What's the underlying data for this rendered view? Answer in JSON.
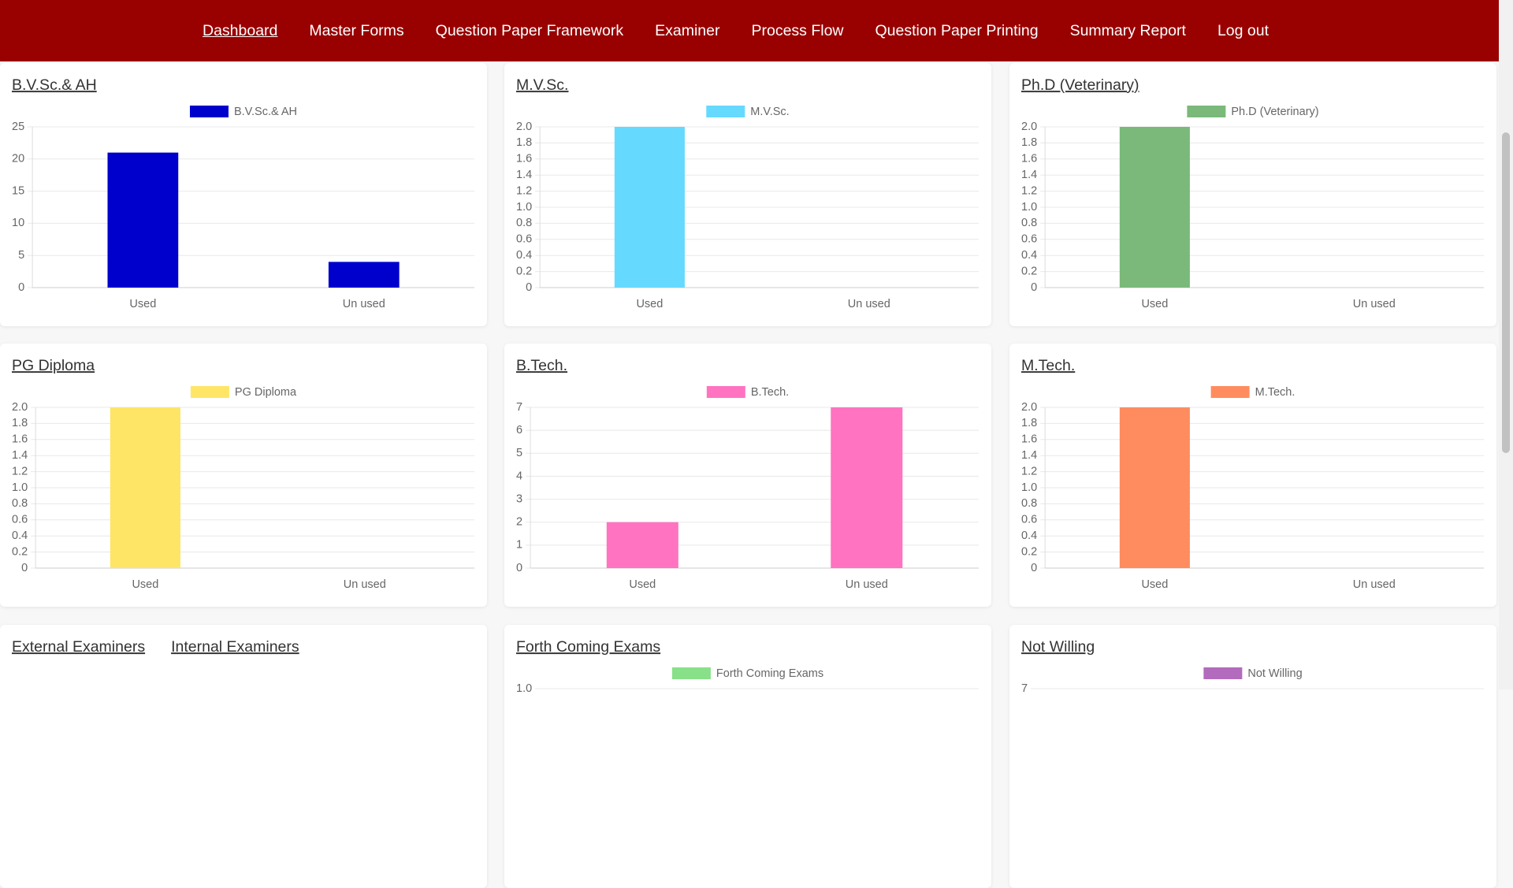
{
  "nav": {
    "items": [
      "Dashboard",
      "Master Forms",
      "Question Paper Framework",
      "Examiner",
      "Process Flow",
      "Question Paper Printing",
      "Summary Report",
      "Log out"
    ]
  },
  "panels": [
    {
      "title": "B.V.Sc.& AH",
      "chart": {
        "type": "bar",
        "categories": [
          "Used",
          "Un used"
        ],
        "series": [
          {
            "name": "B.V.Sc.& AH",
            "color": "#0000cc",
            "values": [
              21,
              4
            ]
          }
        ],
        "ylim": [
          0,
          25
        ],
        "yticks": [
          0,
          5,
          10,
          15,
          20,
          25
        ],
        "grid": true
      }
    },
    {
      "title": "M.V.Sc.",
      "chart": {
        "type": "bar",
        "categories": [
          "Used",
          "Un used"
        ],
        "series": [
          {
            "name": "M.V.Sc.",
            "color": "#66d9ff",
            "values": [
              2,
              0
            ]
          }
        ],
        "ylim": [
          0,
          2
        ],
        "yticks": [
          0,
          0.2,
          0.4,
          0.6,
          0.8,
          {
            "value": 1,
            "label": "1.0"
          },
          1.2,
          1.4,
          1.6,
          1.8,
          {
            "value": 2,
            "label": "2.0"
          }
        ],
        "grid": true
      }
    },
    {
      "title": "Ph.D (Veterinary)",
      "chart": {
        "type": "bar",
        "categories": [
          "Used",
          "Un used"
        ],
        "series": [
          {
            "name": "Ph.D (Veterinary)",
            "color": "#7ab97a",
            "values": [
              2,
              0
            ]
          }
        ],
        "ylim": [
          0,
          2
        ],
        "yticks": [
          0,
          0.2,
          0.4,
          0.6,
          0.8,
          {
            "value": 1,
            "label": "1.0"
          },
          1.2,
          1.4,
          1.6,
          1.8,
          {
            "value": 2,
            "label": "2.0"
          }
        ],
        "grid": true
      }
    },
    {
      "title": "PG Diploma",
      "chart": {
        "type": "bar",
        "categories": [
          "Used",
          "Un used"
        ],
        "series": [
          {
            "name": "PG Diploma",
            "color": "#ffe566",
            "values": [
              2,
              0
            ]
          }
        ],
        "ylim": [
          0,
          2
        ],
        "yticks": [
          0,
          0.2,
          0.4,
          0.6,
          0.8,
          {
            "value": 1,
            "label": "1.0"
          },
          1.2,
          1.4,
          1.6,
          1.8,
          {
            "value": 2,
            "label": "2.0"
          }
        ],
        "grid": true
      }
    },
    {
      "title": "B.Tech.",
      "chart": {
        "type": "bar",
        "categories": [
          "Used",
          "Un used"
        ],
        "series": [
          {
            "name": "B.Tech.",
            "color": "#ff73c0",
            "values": [
              2,
              7
            ]
          }
        ],
        "ylim": [
          0,
          7
        ],
        "yticks": [
          0,
          1,
          2,
          3,
          4,
          5,
          6,
          7
        ],
        "grid": true
      }
    },
    {
      "title": "M.Tech.",
      "chart": {
        "type": "bar",
        "categories": [
          "Used",
          "Un used"
        ],
        "series": [
          {
            "name": "M.Tech.",
            "color": "#ff8c5f",
            "values": [
              2,
              0
            ]
          }
        ],
        "ylim": [
          0,
          2
        ],
        "yticks": [
          0,
          0.2,
          0.4,
          0.6,
          0.8,
          {
            "value": 1,
            "label": "1.0"
          },
          1.2,
          1.4,
          1.6,
          1.8,
          {
            "value": 2,
            "label": "2.0"
          }
        ],
        "grid": true
      }
    },
    {
      "links": [
        "External Examiners",
        "Internal Examiners"
      ]
    },
    {
      "title": "Forth Coming Exams",
      "chart": {
        "type": "bar",
        "series": [
          {
            "name": "Forth Coming Exams",
            "color": "#88e088"
          }
        ],
        "yticks": [
          {
            "value": 1,
            "label": "1.0"
          }
        ],
        "grid": true
      }
    },
    {
      "title": "Not Willing",
      "chart": {
        "type": "bar",
        "series": [
          {
            "name": "Not Willing",
            "color": "#b36bbd"
          }
        ],
        "yticks": [
          7
        ],
        "grid": true
      }
    }
  ]
}
